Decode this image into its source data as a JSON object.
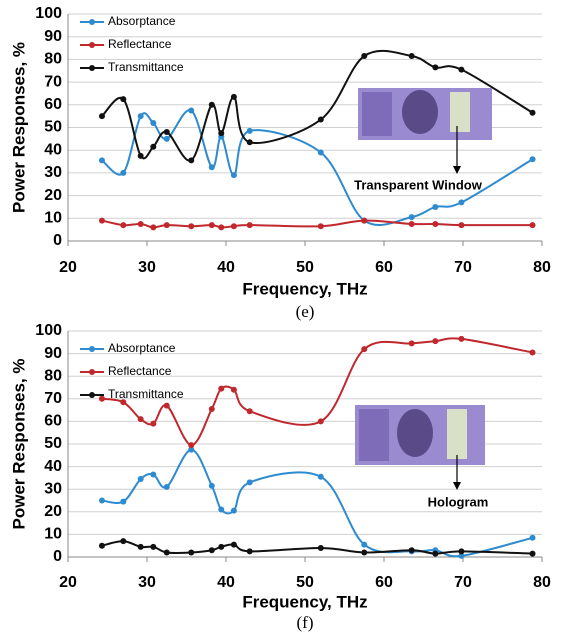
{
  "chart_data": [
    {
      "type": "line",
      "xlabel": "Frequency, THz",
      "ylabel": "Power Responses, %",
      "caption": "(e)",
      "annotation": "Transparent Window",
      "x": [
        24.3,
        27,
        29.2,
        30.8,
        32.5,
        35.6,
        38.2,
        39.4,
        41,
        43,
        52,
        57.5,
        63.5,
        66.5,
        69.8,
        78.8
      ],
      "series": [
        {
          "name": "Absorptance",
          "color": "#2e8bcf",
          "values": [
            35.5,
            30,
            55,
            52,
            45,
            57.5,
            32.5,
            46,
            29,
            48.5,
            39,
            9,
            10.5,
            15,
            17,
            36
          ]
        },
        {
          "name": "Reflectance",
          "color": "#c0282d",
          "values": [
            9,
            7,
            7.5,
            6,
            7,
            6.5,
            7,
            6,
            6.5,
            7,
            6.5,
            9,
            7.5,
            7.5,
            7,
            7
          ]
        },
        {
          "name": "Transmittance",
          "color": "#111111",
          "values": [
            55,
            62.5,
            37.5,
            41.5,
            48,
            35.5,
            60,
            47.5,
            63.5,
            43.5,
            53.5,
            81.5,
            81.5,
            76.5,
            75.5,
            56.5
          ]
        }
      ],
      "xlim": [
        20,
        80
      ],
      "xticks": [
        20,
        30,
        40,
        50,
        60,
        70,
        80
      ],
      "ylim": [
        0,
        100
      ],
      "yticks": [
        0,
        10,
        20,
        30,
        40,
        50,
        60,
        70,
        80,
        90,
        100
      ],
      "grid": true,
      "legend": "upper left"
    },
    {
      "type": "line",
      "xlabel": "Frequency, THz",
      "ylabel": "Power Responses, %",
      "caption": "(f)",
      "annotation": "Hologram",
      "x": [
        24.3,
        27,
        29.2,
        30.8,
        32.5,
        35.6,
        38.2,
        39.4,
        41,
        43,
        52,
        57.5,
        63.5,
        66.5,
        69.8,
        78.8
      ],
      "series": [
        {
          "name": "Absorptance",
          "color": "#2e8bcf",
          "values": [
            25,
            24.5,
            34.5,
            36.5,
            31,
            47.5,
            31.5,
            21,
            20.5,
            33,
            35.5,
            5.5,
            2.5,
            3,
            0.5,
            8.5
          ]
        },
        {
          "name": "Reflectance",
          "color": "#c0282d",
          "values": [
            70,
            68.5,
            61,
            59,
            67,
            49.5,
            65.5,
            74.5,
            74,
            64.5,
            60,
            92,
            94.5,
            95.5,
            96.5,
            90.5
          ]
        },
        {
          "name": "Transmittance",
          "color": "#111111",
          "values": [
            5,
            7,
            4.5,
            4.5,
            2,
            2,
            3,
            4.5,
            5.5,
            2.5,
            4,
            2,
            3,
            1.5,
            2.5,
            1.5
          ]
        }
      ],
      "xlim": [
        20,
        80
      ],
      "xticks": [
        20,
        30,
        40,
        50,
        60,
        70,
        80
      ],
      "ylim": [
        0,
        100
      ],
      "yticks": [
        0,
        10,
        20,
        30,
        40,
        50,
        60,
        70,
        80,
        90,
        100
      ],
      "grid": true,
      "legend": "upper left"
    }
  ]
}
